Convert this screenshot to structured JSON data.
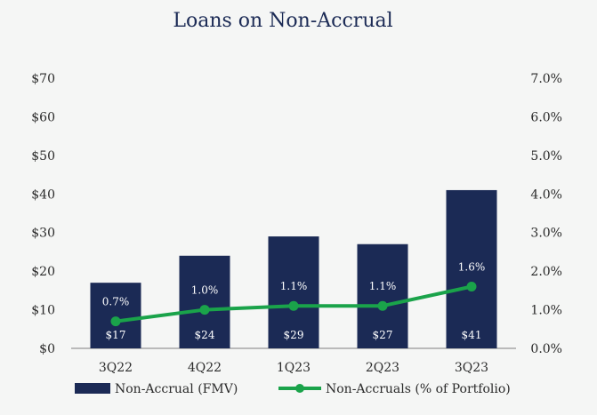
{
  "chart_data": {
    "type": "bar",
    "title": "Loans on Non-Accrual",
    "categories": [
      "3Q22",
      "4Q22",
      "1Q23",
      "2Q23",
      "3Q23"
    ],
    "series": [
      {
        "name": "Non-Accrual (FMV)",
        "type": "bar",
        "axis": "left",
        "values": [
          17,
          24,
          29,
          27,
          41
        ],
        "labels": [
          "$17",
          "$24",
          "$29",
          "$27",
          "$41"
        ],
        "color": "#1b2a55"
      },
      {
        "name": "Non-Accruals (% of Portfolio)",
        "type": "line",
        "axis": "right",
        "values": [
          0.7,
          1.0,
          1.1,
          1.1,
          1.6
        ],
        "labels": [
          "0.7%",
          "1.0%",
          "1.1%",
          "1.1%",
          "1.6%"
        ],
        "color": "#1aa34a"
      }
    ],
    "y_left": {
      "ylim": [
        0,
        70
      ],
      "ticks": [
        0,
        10,
        20,
        30,
        40,
        50,
        60,
        70
      ],
      "tick_labels": [
        "$0",
        "$10",
        "$20",
        "$30",
        "$40",
        "$50",
        "$60",
        "$70"
      ]
    },
    "y_right": {
      "ylim": [
        0,
        7
      ],
      "ticks": [
        0,
        1,
        2,
        3,
        4,
        5,
        6,
        7
      ],
      "tick_labels": [
        "0.0%",
        "1.0%",
        "2.0%",
        "3.0%",
        "4.0%",
        "5.0%",
        "6.0%",
        "7.0%"
      ]
    },
    "grid": false,
    "legend_position": "bottom",
    "axis_color": "#7f7f7f",
    "text_color": "#2a2a2a",
    "title_color": "#1b2a55",
    "background": "#f5f6f5"
  }
}
